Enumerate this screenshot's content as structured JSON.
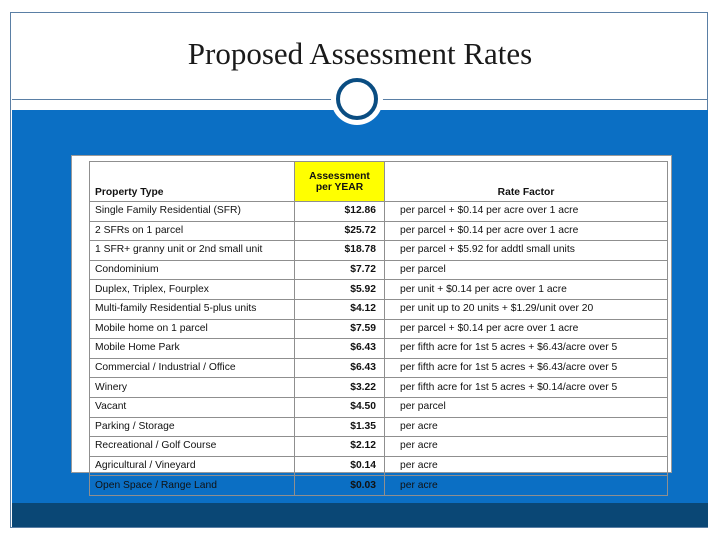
{
  "slide": {
    "title": "Proposed Assessment Rates"
  },
  "colors": {
    "panel": "#0b6fc4",
    "footer": "#0a4775",
    "header_highlight": "#ffff00"
  },
  "table": {
    "headers": {
      "property_type": "Property Type",
      "assessment_line1": "Assessment",
      "assessment_line2": "per YEAR",
      "rate_factor": "Rate Factor"
    },
    "rows": [
      {
        "type": "Single Family Residential (SFR)",
        "amount": "$12.86",
        "factor": "per parcel + $0.14 per acre over 1 acre"
      },
      {
        "type": "2 SFRs on 1 parcel",
        "amount": "$25.72",
        "factor": "per parcel + $0.14 per acre over 1 acre"
      },
      {
        "type": "1 SFR+ granny unit or 2nd small unit",
        "amount": "$18.78",
        "factor": "per parcel + $5.92 for addtl small units"
      },
      {
        "type": "Condominium",
        "amount": "$7.72",
        "factor": "per parcel"
      },
      {
        "type": "Duplex, Triplex, Fourplex",
        "amount": "$5.92",
        "factor": "per unit + $0.14 per acre over 1 acre"
      },
      {
        "type": "Multi-family Residential 5-plus units",
        "amount": "$4.12",
        "factor": "per unit up to 20 units + $1.29/unit over 20"
      },
      {
        "type": "Mobile home on 1 parcel",
        "amount": "$7.59",
        "factor": "per parcel + $0.14 per acre over 1 acre"
      },
      {
        "type": "Mobile Home Park",
        "amount": "$6.43",
        "factor": "per fifth acre for 1st 5 acres + $6.43/acre over 5"
      },
      {
        "type": "Commercial / Industrial / Office",
        "amount": "$6.43",
        "factor": "per fifth acre for 1st 5 acres + $6.43/acre over 5"
      },
      {
        "type": "Winery",
        "amount": "$3.22",
        "factor": "per fifth acre for 1st 5 acres + $0.14/acre over 5"
      },
      {
        "type": "Vacant",
        "amount": "$4.50",
        "factor": "per parcel"
      },
      {
        "type": "Parking / Storage",
        "amount": "$1.35",
        "factor": "per acre"
      },
      {
        "type": "Recreational / Golf Course",
        "amount": "$2.12",
        "factor": "per acre"
      },
      {
        "type": "Agricultural / Vineyard",
        "amount": "$0.14",
        "factor": "per acre"
      },
      {
        "type": "Open Space / Range Land",
        "amount": "$0.03",
        "factor": "per acre"
      }
    ]
  }
}
